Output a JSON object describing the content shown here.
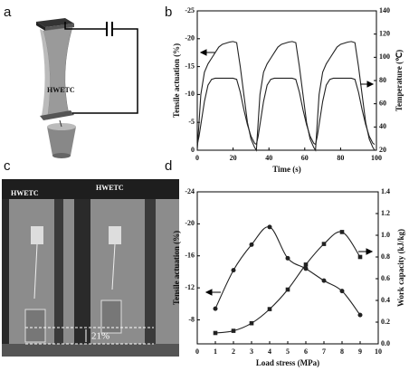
{
  "panel_labels": [
    "a",
    "b",
    "c",
    "d"
  ],
  "diagram": {
    "label": "HWETC"
  },
  "photo": {
    "labels": [
      "HWETC",
      "HWETC"
    ],
    "annotation": "21%"
  },
  "chart_data": [
    {
      "type": "line",
      "xlabel": "Time (s)",
      "ylabel": "Tensile actuation (%)",
      "y2label": "Temperature (℃)",
      "x": [
        0,
        1,
        2,
        4,
        6,
        8,
        10,
        12,
        14,
        16,
        18,
        20,
        22,
        24,
        26,
        28,
        30,
        32,
        33,
        34,
        35,
        37,
        39,
        41,
        43,
        45,
        47,
        49,
        51,
        53,
        55,
        57,
        59,
        61,
        63,
        65,
        66,
        67,
        68,
        70,
        72,
        74,
        76,
        78,
        80,
        82,
        84,
        86,
        88,
        90,
        92,
        94,
        96,
        98,
        99
      ],
      "xlim": [
        0,
        100
      ],
      "xticks": [
        0,
        20,
        40,
        60,
        80,
        100
      ],
      "ylim": [
        0,
        -25
      ],
      "yticks": [
        0,
        -5,
        -10,
        -15,
        -20,
        -25
      ],
      "y2lim": [
        20,
        140
      ],
      "y2ticks": [
        20,
        40,
        60,
        80,
        100,
        120,
        140
      ],
      "color": "#222222",
      "series": [
        {
          "values": [
            0,
            -5,
            -10,
            -14,
            -15.5,
            -16.5,
            -17.5,
            -18.5,
            -19,
            -19.2,
            -19.4,
            -19.5,
            -19.3,
            -15,
            -10,
            -5,
            -2,
            -0.5,
            0,
            -5,
            -10,
            -14,
            -15.5,
            -16.5,
            -17.5,
            -18.5,
            -19,
            -19.2,
            -19.4,
            -19.5,
            -19.3,
            -15,
            -10,
            -5,
            -2,
            -0.5,
            0,
            -5,
            -10,
            -14,
            -15.5,
            -16.5,
            -17.5,
            -18.5,
            -19,
            -19.2,
            -19.4,
            -19.5,
            -19.3,
            -15,
            -10,
            -5,
            -2,
            -0.5,
            0
          ]
        },
        {
          "axis": "y2",
          "values": [
            25,
            32,
            42,
            62,
            76,
            81,
            82,
            82,
            82,
            82,
            82,
            82,
            81,
            70,
            55,
            42,
            32,
            26,
            25,
            32,
            42,
            62,
            76,
            81,
            82,
            82,
            82,
            82,
            82,
            82,
            81,
            70,
            55,
            42,
            32,
            26,
            25,
            32,
            42,
            62,
            76,
            81,
            82,
            82,
            82,
            82,
            82,
            82,
            81,
            70,
            55,
            42,
            32,
            26,
            25
          ]
        }
      ]
    },
    {
      "type": "scatter",
      "xlabel": "Load stress (MPa)",
      "ylabel": "Tensile actuation (%)",
      "y2label": "Work capacity (kJ/kg)",
      "x": [
        1,
        2,
        3,
        4,
        5,
        6,
        7,
        8,
        9
      ],
      "xlim": [
        0,
        10
      ],
      "xticks": [
        0,
        1,
        2,
        3,
        4,
        5,
        6,
        7,
        8,
        9,
        10
      ],
      "ylim": [
        -5,
        -24
      ],
      "yticks": [
        -8,
        -12,
        -16,
        -20,
        -24
      ],
      "y2lim": [
        0,
        1.4
      ],
      "y2ticks": [
        {
          "value": 0,
          "label": "0.0"
        },
        0.2,
        0.4,
        0.6,
        0.8,
        {
          "value": 1,
          "label": "1.0"
        },
        1.2,
        1.4
      ],
      "color": "#222222",
      "smooth": true,
      "series": [
        {
          "marker": "circle",
          "values": [
            -9.4,
            -14.2,
            -17.4,
            -19.6,
            -15.7,
            -14.4,
            -12.9,
            -11.6,
            -8.6
          ]
        },
        {
          "marker": "square",
          "axis": "y2",
          "values": [
            0.1,
            0.12,
            0.19,
            0.32,
            0.5,
            0.73,
            0.92,
            1.03,
            0.8
          ]
        }
      ]
    }
  ]
}
